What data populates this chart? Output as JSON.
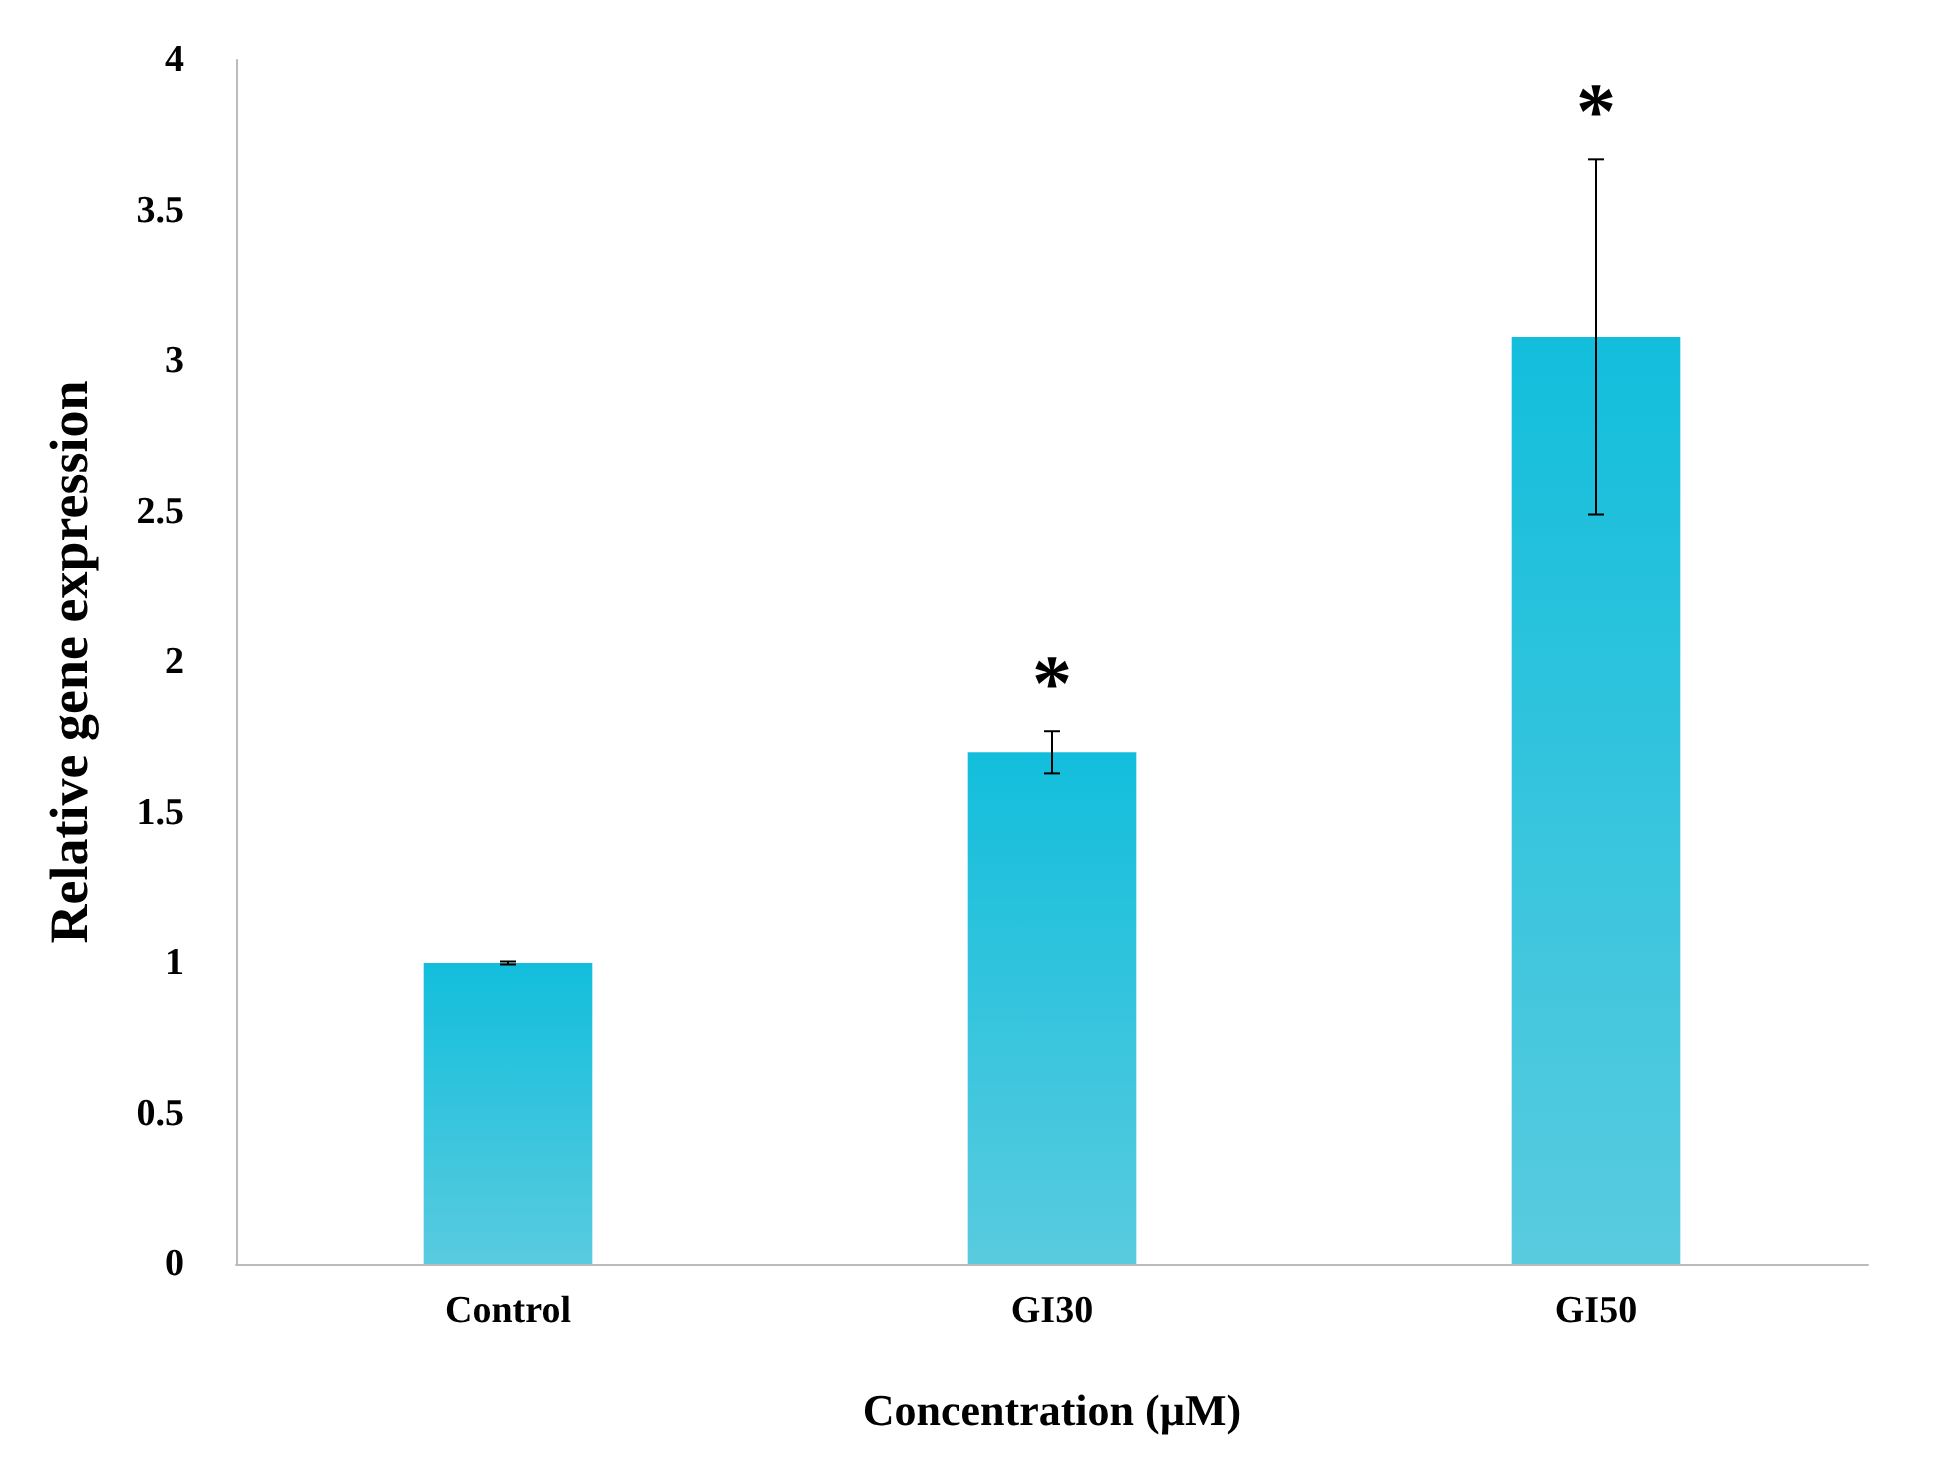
{
  "chart_data": {
    "type": "bar",
    "xlabel": "Concentration (µM)",
    "ylabel": "Relative gene expression",
    "categories": [
      "Control",
      "GI30",
      "GI50"
    ],
    "values": [
      1.0,
      1.7,
      3.08
    ],
    "errors": [
      0.005,
      0.07,
      [
        2.49,
        3.67
      ]
    ],
    "color": "#12b5d2",
    "ylim": [
      0,
      4
    ],
    "yticks": [
      0,
      0.5,
      1,
      1.5,
      2,
      2.5,
      3,
      3.5,
      4
    ],
    "grid": false,
    "annotations": [
      {
        "text": "*",
        "x": "GI30",
        "y": 1.77
      },
      {
        "text": "*",
        "x": "GI50",
        "y": 3.67
      }
    ]
  }
}
